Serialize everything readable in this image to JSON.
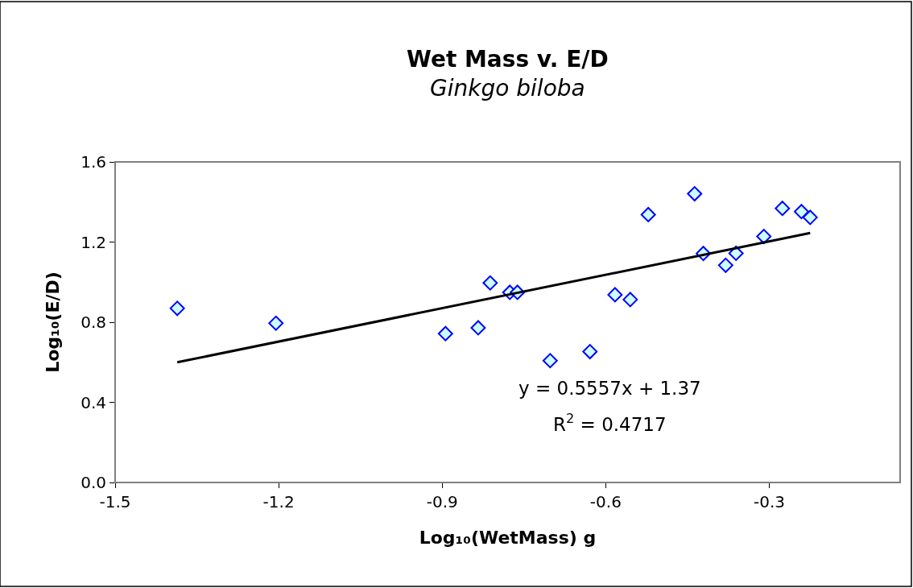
{
  "chart_data": {
    "type": "scatter",
    "title": "Wet Mass v. E/D",
    "subtitle": "Ginkgo biloba",
    "xlabel": "Log₁₀(WetMass) g",
    "ylabel": "Log₁₀(E/D)",
    "annotations": [
      "y = 0.5557x + 1.37",
      "R$^{2}$ = 0.4717"
    ],
    "xlim": [
      -1.5,
      -0.06
    ],
    "xticks": [
      -1.5,
      -1.2,
      -0.9,
      -0.6,
      -0.3
    ],
    "ylim": [
      0,
      1.6
    ],
    "yticks": [
      {
        "value": 0,
        "label": "0.0"
      },
      0.4,
      0.8,
      1.2,
      1.6
    ],
    "legend": false,
    "marker": "diamond",
    "series": [
      {
        "color": "#0000ff",
        "x": [
          -1.386,
          -1.205,
          -0.894,
          -0.834,
          -0.812,
          -0.776,
          -0.762,
          -0.702,
          -0.629,
          -0.583,
          -0.555,
          -0.522,
          -0.437,
          -0.421,
          -0.38,
          -0.361,
          -0.31,
          -0.276,
          -0.241,
          -0.225
        ],
        "values": [
          0.869,
          0.795,
          0.743,
          0.772,
          0.996,
          0.949,
          0.949,
          0.608,
          0.653,
          0.937,
          0.913,
          1.337,
          1.441,
          1.143,
          1.084,
          1.144,
          1.228,
          1.368,
          1.352,
          1.323
        ]
      },
      {
        "type": "line",
        "marker": "none",
        "color": "#000000",
        "x": [
          -1.386,
          -0.225
        ],
        "values": [
          0.6,
          1.245
        ]
      }
    ]
  }
}
